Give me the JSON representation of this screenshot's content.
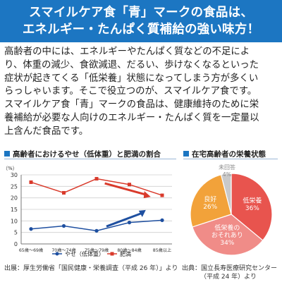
{
  "header": {
    "line1": "スマイルケア食「青」マークの食品は、",
    "line2": "エネルギー・たんぱく質補給の強い味方！"
  },
  "body_lines": [
    "高齢者の中には、エネルギーやたんぱく質などの不足によ",
    "り、体重の減少、食欲減退、だるい、歩けなくなるといった",
    "症状が起きてくる「低栄養」状態になってしまう方が多くい",
    "らっしゃいます。そこで役立つのが、スマイルケア食です。",
    "スマイルケア食「青」マークの食品は、健康維持のために栄",
    "養補給が必要な人向けのエネルギー・たんぱく質を一定量以",
    "上含んだ食品です。"
  ],
  "colors": {
    "header_bg": "#1c76c2",
    "thin_series": "#1e4fa0",
    "obese_series": "#d93a2b",
    "pie_low": "#e8544e",
    "pie_risk": "#f08c88",
    "pie_good": "#f2a23a",
    "pie_none": "#c9c9c9"
  },
  "chart_data": [
    {
      "type": "line",
      "title": "高齢者におけるやせ（低体重）と肥満の割合",
      "ylabel": "（%）",
      "ylim": [
        0,
        30
      ],
      "yticks": [
        "0",
        "5",
        "10",
        "15",
        "20",
        "25",
        "30"
      ],
      "categories": [
        "65歳～69歳",
        "70歳～74歳",
        "75歳～79歳",
        "80歳～84歳",
        "85歳以上"
      ],
      "series": [
        {
          "name": "やせ（低体重）",
          "values": [
            6.5,
            7.8,
            5.7,
            9.3,
            10.3
          ]
        },
        {
          "name": "肥満",
          "values": [
            26.8,
            22.2,
            28.3,
            25.8,
            21.1
          ]
        }
      ],
      "source": "出展：厚生労働省「国民健康・栄養調査（平成 26 年）」より"
    },
    {
      "type": "pie",
      "title": "在宅高齢者の栄養状態",
      "slices": [
        {
          "label": "低栄養",
          "value": 36,
          "text": "36%"
        },
        {
          "label": "低栄養の\nおそれあり",
          "value": 34,
          "text": "34%"
        },
        {
          "label": "良好",
          "value": 26,
          "text": "26%"
        },
        {
          "label": "未回答",
          "value": 4,
          "text": "4%"
        }
      ],
      "source_line1": "出典：国立長寿医療研究センター",
      "source_line2": "（平成 24 年）より"
    }
  ]
}
